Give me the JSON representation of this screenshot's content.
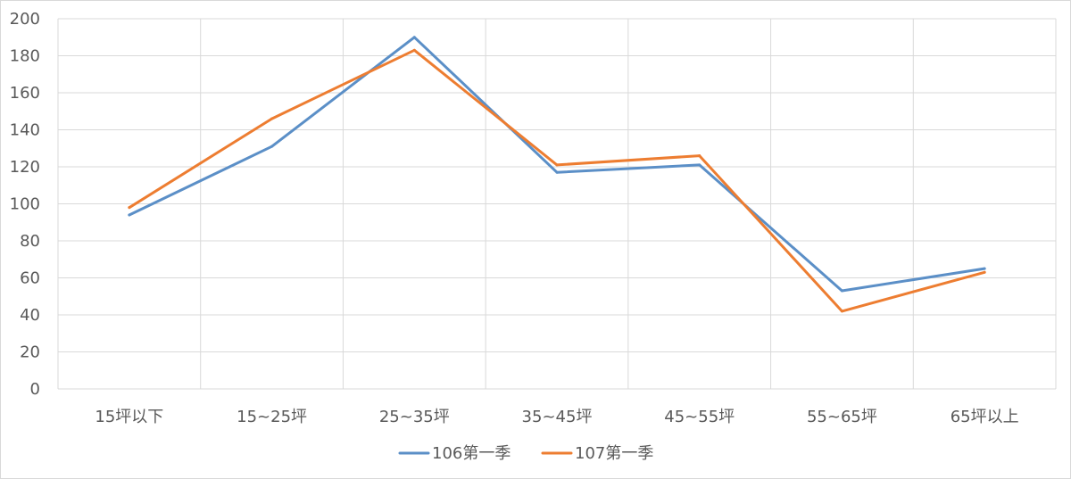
{
  "chart_data": {
    "type": "line",
    "title": "",
    "xlabel": "",
    "ylabel": "",
    "categories": [
      "15坪以下",
      "15~25坪",
      "25~35坪",
      "35~45坪",
      "45~55坪",
      "55~65坪",
      "65坪以上"
    ],
    "ylim": [
      0,
      200
    ],
    "yticks": [
      0,
      20,
      40,
      60,
      80,
      100,
      120,
      140,
      160,
      180,
      200
    ],
    "grid": true,
    "legend_position": "bottom",
    "series": [
      {
        "name": "106第一季",
        "color": "#5b8fc7",
        "values": [
          94,
          131,
          190,
          117,
          121,
          53,
          65
        ]
      },
      {
        "name": "107第一季",
        "color": "#ed7d31",
        "values": [
          98,
          146,
          183,
          121,
          126,
          42,
          63
        ]
      }
    ]
  }
}
